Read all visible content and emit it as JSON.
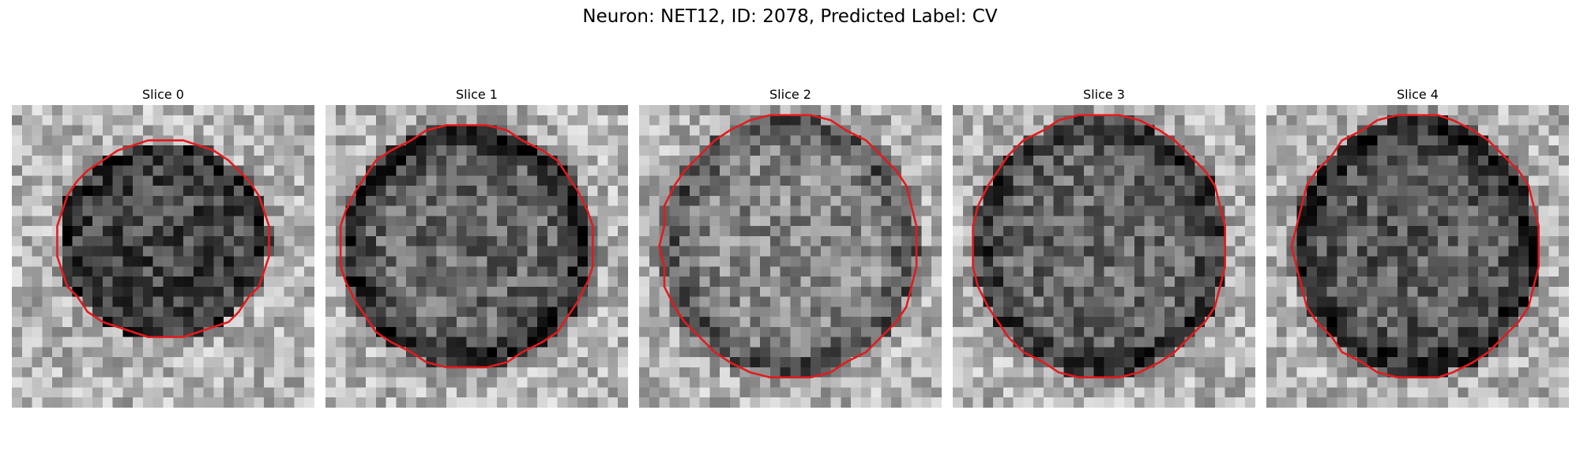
{
  "figure": {
    "title": "Neuron: NET12, ID: 2078, Predicted Label: CV",
    "contour_color": "#e41a1c",
    "colormap": "gray"
  },
  "panels": [
    {
      "title": "Slice 0"
    },
    {
      "title": "Slice 1"
    },
    {
      "title": "Slice 2"
    },
    {
      "title": "Slice 3"
    },
    {
      "title": "Slice 4"
    }
  ]
}
